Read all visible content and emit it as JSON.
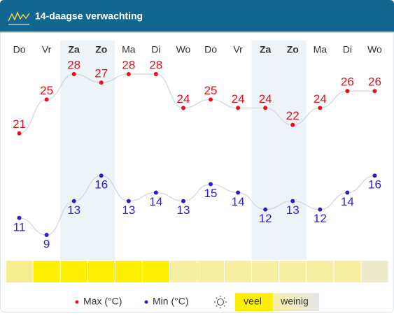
{
  "header": {
    "title": "14-daagse verwachting"
  },
  "chart_data": {
    "type": "line",
    "categories": [
      "Do",
      "Vr",
      "Za",
      "Zo",
      "Ma",
      "Di",
      "Wo",
      "Do",
      "Vr",
      "Za",
      "Zo",
      "Ma",
      "Di",
      "Wo"
    ],
    "shaded_columns": [
      2,
      3,
      9,
      10
    ],
    "series": [
      {
        "name": "Max (°C)",
        "color": "#e8101a",
        "values": [
          21,
          25,
          28,
          27,
          28,
          28,
          24,
          25,
          24,
          24,
          22,
          24,
          26,
          26
        ]
      },
      {
        "name": "Min (°C)",
        "color": "#2a1fd0",
        "values": [
          11,
          9,
          13,
          16,
          13,
          14,
          13,
          15,
          14,
          12,
          13,
          12,
          14,
          16
        ]
      }
    ],
    "sun_colors": [
      "#f6ee8e",
      "#fff000",
      "#fff000",
      "#fff000",
      "#fff000",
      "#fff000",
      "#f7f0a2",
      "#f7f0a2",
      "#f7f0a2",
      "#f7f0a2",
      "#f7f0a2",
      "#f7f0a2",
      "#f7f0a2",
      "#eeebcc"
    ],
    "sun_legend": [
      "veel",
      "weinig"
    ]
  }
}
